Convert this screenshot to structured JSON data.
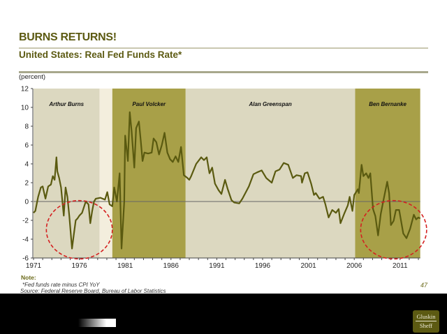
{
  "header": {
    "title": "BURNS RETURNS!",
    "subtitle": "United States: Real Fed Funds Rate*",
    "unit": "(percent)"
  },
  "footer": {
    "note_label": "Note:",
    "footnote": "*Fed funds rate minus CPI YoY",
    "source": "Source: Federal Reserve Board, Bureau of Labor Statistics",
    "page_number": "47",
    "logo_line1": "Gluskin",
    "logo_line2": "Sheff"
  },
  "chart_data": {
    "type": "line",
    "title": "United States: Real Fed Funds Rate*",
    "ylabel": "(percent)",
    "xlim": [
      1971,
      2013.2
    ],
    "ylim": [
      -6,
      12
    ],
    "x_ticks": [
      "1971",
      "1976",
      "1981",
      "1986",
      "1991",
      "1996",
      "2001",
      "2006",
      "2011"
    ],
    "y_ticks": [
      "12",
      "10",
      "8",
      "6",
      "4",
      "2",
      "0",
      "-2",
      "-4",
      "-6"
    ],
    "grid": false,
    "zero_line": true,
    "colors": {
      "line": "#5a5a10",
      "region_light": "#dcd8c0",
      "region_gap": "#f3eedd",
      "region_dark": "#a8a048",
      "annotation": "#d42020"
    },
    "regions": [
      {
        "label": "Arthur Burns",
        "start": 1971.0,
        "end": 1978.2,
        "style": "light"
      },
      {
        "label": "",
        "start": 1978.2,
        "end": 1979.6,
        "style": "gap"
      },
      {
        "label": "Paul Volcker",
        "start": 1979.6,
        "end": 1987.6,
        "style": "dark"
      },
      {
        "label": "Alan Greenspan",
        "start": 1987.6,
        "end": 2006.1,
        "style": "light"
      },
      {
        "label": "Ben Bernanke",
        "start": 2006.1,
        "end": 2013.2,
        "style": "dark"
      }
    ],
    "annotations": [
      {
        "type": "dashed-ellipse",
        "cx": 1976.0,
        "cy": -3.0,
        "rx_years": 3.6,
        "ry_units": 3.1
      },
      {
        "type": "dashed-ellipse",
        "cx": 2010.3,
        "cy": -3.0,
        "rx_years": 3.6,
        "ry_units": 3.1
      }
    ],
    "series": [
      {
        "x": [
          1971.0,
          1971.2,
          1971.5,
          1971.8,
          1972.0,
          1972.3,
          1972.6,
          1972.9,
          1973.1,
          1973.3,
          1973.5,
          1973.6,
          1973.8,
          1974.0,
          1974.3,
          1974.5,
          1974.7,
          1974.9,
          1975.2,
          1975.4,
          1975.6,
          1975.8,
          1976.0,
          1976.3,
          1976.7,
          1977.0,
          1977.2,
          1977.4,
          1977.6,
          1977.8,
          1978.3,
          1978.8,
          1979.05,
          1979.3,
          1979.6,
          1979.8,
          1980.1,
          1980.4,
          1980.6,
          1980.9,
          1981.0,
          1981.3,
          1981.5,
          1981.7,
          1982.0,
          1982.2,
          1982.5,
          1982.7,
          1982.9,
          1983.1,
          1983.5,
          1983.9,
          1984.1,
          1984.4,
          1984.7,
          1985.0,
          1985.3,
          1985.6,
          1985.9,
          1986.2,
          1986.5,
          1986.8,
          1987.1,
          1987.4,
          1987.8,
          1988.0,
          1988.2,
          1988.75,
          1989.3,
          1989.6,
          1989.9,
          1990.2,
          1990.5,
          1990.8,
          1991.2,
          1991.5,
          1991.9,
          1992.2,
          1992.6,
          1992.9,
          1993.45,
          1993.8,
          1994.5,
          1995.0,
          1995.4,
          1995.9,
          1996.4,
          1997.0,
          1997.4,
          1997.85,
          1998.3,
          1998.8,
          1999.3,
          1999.7,
          2000.2,
          2000.3,
          2000.6,
          2000.9,
          2001.3,
          2001.6,
          2001.8,
          2002.2,
          2002.6,
          2002.85,
          2003.2,
          2003.6,
          2004.0,
          2004.3,
          2004.5,
          2004.9,
          2005.3,
          2005.5,
          2005.8,
          2006.0,
          2006.4,
          2006.5,
          2006.8,
          2007.0,
          2007.3,
          2007.55,
          2007.75,
          2008.05,
          2008.3,
          2008.6,
          2008.9,
          2009.2,
          2009.6,
          2009.8,
          2010.0,
          2010.3,
          2010.55,
          2010.9,
          2011.35,
          2011.7,
          2012.1,
          2012.5,
          2012.75,
          2013.0,
          2013.2
        ],
        "y": [
          -1.2,
          -1.0,
          0.5,
          1.5,
          1.6,
          0.3,
          1.6,
          1.8,
          2.7,
          2.3,
          4.7,
          3.2,
          2.5,
          1.5,
          -1.5,
          1.5,
          0.5,
          -1.5,
          -5.0,
          -3.5,
          -2.0,
          -1.8,
          -1.5,
          -1.2,
          0.0,
          -0.3,
          -2.3,
          -1.0,
          0.0,
          0.3,
          0.4,
          0.2,
          1.0,
          -0.3,
          -0.5,
          1.5,
          0.0,
          3.0,
          -5.0,
          0.0,
          7.0,
          4.3,
          9.5,
          7.5,
          3.6,
          7.8,
          8.5,
          6.5,
          4.3,
          5.2,
          5.1,
          5.2,
          6.7,
          6.3,
          5.0,
          6.0,
          7.3,
          5.2,
          4.5,
          4.2,
          4.8,
          4.2,
          5.8,
          2.8,
          2.5,
          2.3,
          2.7,
          4.0,
          4.7,
          4.4,
          4.7,
          3.0,
          3.6,
          1.9,
          1.2,
          0.8,
          2.3,
          1.3,
          0.15,
          -0.1,
          -0.2,
          0.3,
          1.6,
          2.9,
          3.1,
          3.3,
          2.5,
          2.0,
          3.2,
          3.4,
          4.1,
          3.9,
          2.5,
          2.8,
          2.7,
          2.0,
          3.0,
          3.1,
          1.9,
          0.7,
          0.9,
          0.3,
          0.5,
          -0.3,
          -1.7,
          -0.9,
          -1.2,
          -0.8,
          -2.3,
          -1.3,
          -0.4,
          0.5,
          -1.0,
          0.7,
          1.3,
          0.9,
          3.9,
          2.7,
          3.0,
          2.5,
          3.0,
          -0.8,
          -1.55,
          -3.6,
          -1.3,
          0.2,
          2.1,
          0.9,
          -2.5,
          -2.05,
          -0.9,
          -0.9,
          -3.4,
          -3.9,
          -2.9,
          -1.4,
          -1.9,
          -1.7,
          -1.8
        ]
      }
    ]
  }
}
